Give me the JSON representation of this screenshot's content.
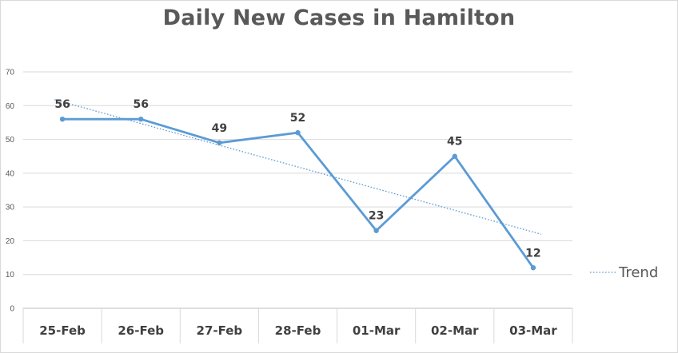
{
  "chart_data": {
    "type": "line",
    "title": "Daily New Cases in Hamilton",
    "categories": [
      "25-Feb",
      "26-Feb",
      "27-Feb",
      "28-Feb",
      "01-Mar",
      "02-Mar",
      "03-Mar"
    ],
    "series": [
      {
        "values": [
          56,
          56,
          49,
          52,
          23,
          45,
          12
        ],
        "color": "#5b9bd5"
      }
    ],
    "trendline": {
      "name": "Trend",
      "type": "linear",
      "style": "dotted",
      "color": "#5b9bd5"
    },
    "ylim": [
      0,
      70
    ],
    "yticks": [
      0,
      10,
      20,
      30,
      40,
      50,
      60,
      70
    ],
    "grid": true,
    "data_labels": true,
    "legend": "right"
  }
}
